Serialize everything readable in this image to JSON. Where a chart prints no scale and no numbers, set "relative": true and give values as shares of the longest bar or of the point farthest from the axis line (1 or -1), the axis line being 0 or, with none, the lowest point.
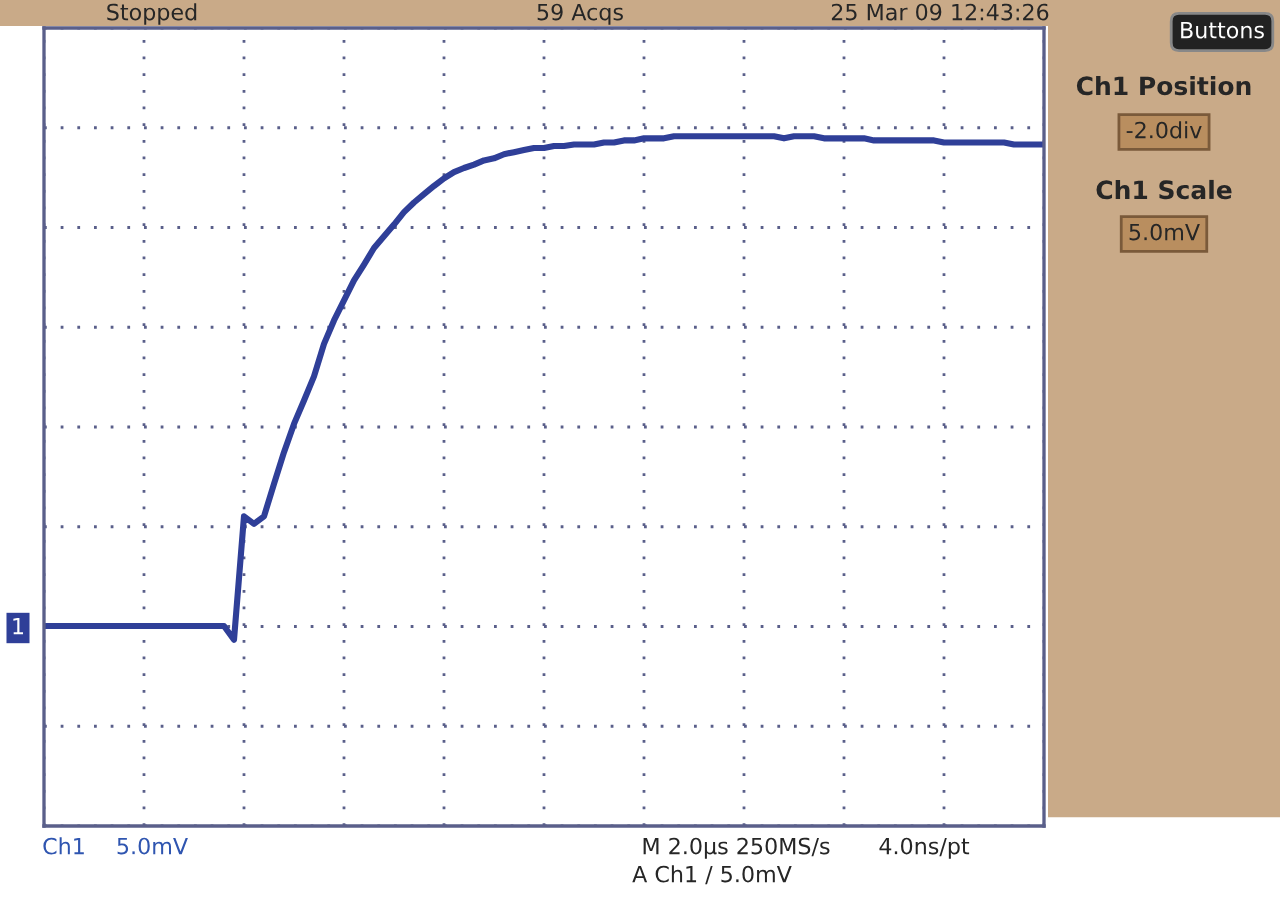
{
  "chart_data": {
    "type": "line",
    "relative": true,
    "grid": true,
    "legend": false,
    "marker": "none",
    "line_style": "solid",
    "categories": [
      null,
      null,
      null,
      null,
      null,
      null,
      null,
      null,
      null,
      null,
      null,
      null,
      null,
      null,
      null,
      null,
      null,
      null,
      null,
      null,
      null,
      null,
      null,
      null,
      null,
      null,
      null,
      null,
      null,
      null,
      null,
      null,
      null,
      null,
      null,
      null,
      null,
      null,
      null,
      null,
      null,
      null,
      null,
      null,
      null,
      null,
      null,
      null,
      null,
      null,
      null,
      null,
      null,
      null,
      null,
      null,
      null,
      null,
      null,
      null,
      null,
      null,
      null,
      null,
      null,
      null,
      null,
      null,
      null,
      null,
      null,
      null,
      null,
      null,
      null,
      null,
      null,
      null,
      null,
      null,
      null,
      null,
      null,
      null,
      null,
      null,
      null,
      null,
      null,
      null,
      null,
      null,
      null,
      null,
      null,
      null,
      null,
      null,
      null,
      null,
      null
    ],
    "series": [
      {
        "color": "#2f3f98",
        "values": [
          0.29,
          0.29,
          0.29,
          0.29,
          0.29,
          0.29,
          0.29,
          0.29,
          0.29,
          0.29,
          0.29,
          0.29,
          0.29,
          0.29,
          0.29,
          0.29,
          0.29,
          0.29,
          0.29,
          0.27,
          0.449,
          0.438,
          0.449,
          0.496,
          0.542,
          0.583,
          0.617,
          0.652,
          0.699,
          0.733,
          0.762,
          0.791,
          0.814,
          0.838,
          0.855,
          0.872,
          0.89,
          0.904,
          0.916,
          0.928,
          0.939,
          0.948,
          0.954,
          0.959,
          0.965,
          0.968,
          0.974,
          0.977,
          0.98,
          0.983,
          0.983,
          0.986,
          0.986,
          0.988,
          0.988,
          0.988,
          0.991,
          0.991,
          0.994,
          0.994,
          0.997,
          0.997,
          0.997,
          1,
          1,
          1,
          1,
          1,
          1,
          1,
          1,
          1,
          1,
          1,
          0.997,
          1,
          1,
          1,
          0.997,
          0.997,
          0.997,
          0.997,
          0.997,
          0.994,
          0.994,
          0.994,
          0.994,
          0.994,
          0.994,
          0.994,
          0.991,
          0.991,
          0.991,
          0.991,
          0.991,
          0.991,
          0.991,
          0.988,
          0.988,
          0.988,
          0.988
        ]
      }
    ],
    "annotations": [
      "Stopped",
      "59 Acqs",
      "25 Mar 09 12:43:26",
      "Buttons",
      "Ch1 Position",
      "-2.0div",
      "Ch1 Scale",
      "5.0mV",
      "Ch1",
      "5.0mV",
      "M 2.0µs 250MS/s",
      "4.0ns/pt",
      "A Ch1 / 5.0mV",
      "1"
    ]
  }
}
